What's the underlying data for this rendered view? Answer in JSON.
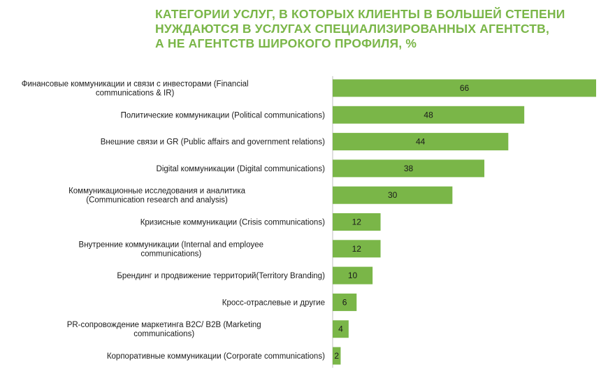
{
  "title_lines": [
    "КАТЕГОРИИ УСЛУГ, В КОТОРЫХ КЛИЕНТЫ В БОЛЬШЕЙ СТЕПЕНИ",
    "НУЖДАЮТСЯ В УСЛУГАХ СПЕЦИАЛИЗИРОВАННЫХ АГЕНТСТВ,",
    "А НЕ АГЕНТСТВ ШИРОКОГО ПРОФИЛЯ, %"
  ],
  "colors": {
    "bar": "#7ab648",
    "title": "#7ab648",
    "axis": "#bfbfbf"
  },
  "chart_data": {
    "type": "bar",
    "orientation": "horizontal",
    "title": "КАТЕГОРИИ УСЛУГ, В КОТОРЫХ КЛИЕНТЫ В БОЛЬШЕЙ СТЕПЕНИ НУЖДАЮТСЯ В УСЛУГАХ СПЕЦИАЛИЗИРОВАННЫХ АГЕНТСТВ, А НЕ АГЕНТСТВ ШИРОКОГО ПРОФИЛЯ, %",
    "categories": [
      [
        "Финансовые коммуникации и связи с инвесторами (Financial",
        "communications & IR)"
      ],
      [
        "Политические коммуникации (Political communications)"
      ],
      [
        "Внешние связи и GR (Public affairs and government relations)"
      ],
      [
        "Digital коммуникации (Digital communications)"
      ],
      [
        "Коммуникационные исследования и аналитика",
        "(Communication research and analysis)"
      ],
      [
        "Кризисные коммуникации (Crisis communications)"
      ],
      [
        "Внутренние коммуникации (Internal and employee",
        "communications)"
      ],
      [
        "Брендинг и продвижение территорий(Territory Branding)"
      ],
      [
        "Кросс-отраслевые и другие"
      ],
      [
        "PR-сопровождение маркетинга B2C/ B2B (Marketing",
        "communications)"
      ],
      [
        "Корпоративные коммуникации (Corporate communications)"
      ]
    ],
    "values": [
      66,
      48,
      44,
      38,
      30,
      12,
      12,
      10,
      6,
      4,
      2
    ],
    "xlim": [
      0,
      66
    ],
    "grid": false,
    "data_labels": true
  }
}
